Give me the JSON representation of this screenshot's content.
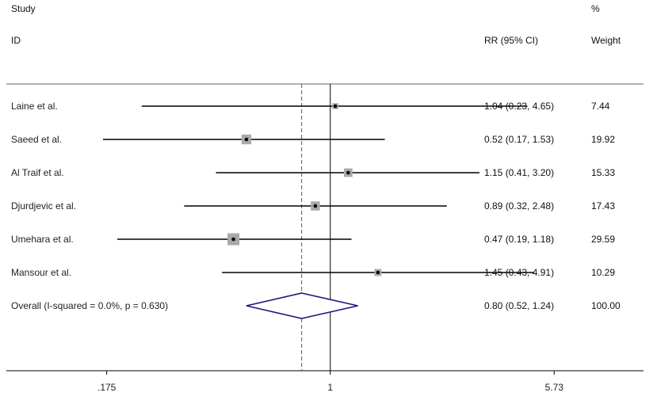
{
  "headers": {
    "study_line1": "Study",
    "study_line2": "ID",
    "rr": "RR (95% CI)",
    "weight_line1": "%",
    "weight_line2": "Weight"
  },
  "chart_data": {
    "type": "forest",
    "x_scale": "log",
    "xlim": [
      0.08,
      11.5
    ],
    "x_ticks": [
      0.175,
      1,
      5.73
    ],
    "x_tick_labels": [
      ".175",
      "1",
      "5.73"
    ],
    "null_line": 1,
    "overall_line": 0.8,
    "studies": [
      {
        "name": "Laine et al.",
        "rr": 1.04,
        "lo": 0.23,
        "hi": 4.65,
        "ci_text": "1.04 (0.23, 4.65)",
        "weight": 7.44,
        "weight_text": "7.44"
      },
      {
        "name": "Saeed et al.",
        "rr": 0.52,
        "lo": 0.17,
        "hi": 1.53,
        "ci_text": "0.52 (0.17, 1.53)",
        "weight": 19.92,
        "weight_text": "19.92"
      },
      {
        "name": "Al Traif et al.",
        "rr": 1.15,
        "lo": 0.41,
        "hi": 3.2,
        "ci_text": "1.15 (0.41, 3.20)",
        "weight": 15.33,
        "weight_text": "15.33"
      },
      {
        "name": "Djurdjevic et al.",
        "rr": 0.89,
        "lo": 0.32,
        "hi": 2.48,
        "ci_text": "0.89 (0.32, 2.48)",
        "weight": 17.43,
        "weight_text": "17.43"
      },
      {
        "name": "Umehara et al.",
        "rr": 0.47,
        "lo": 0.19,
        "hi": 1.18,
        "ci_text": "0.47 (0.19, 1.18)",
        "weight": 29.59,
        "weight_text": "29.59"
      },
      {
        "name": "Mansour et al.",
        "rr": 1.45,
        "lo": 0.43,
        "hi": 4.91,
        "ci_text": "1.45 (0.43, 4.91)",
        "weight": 10.29,
        "weight_text": "10.29"
      }
    ],
    "overall": {
      "name": "Overall  (I-squared = 0.0%, p = 0.630)",
      "rr": 0.8,
      "lo": 0.52,
      "hi": 1.24,
      "ci_text": "0.80 (0.52, 1.24)",
      "weight_text": "100.00"
    },
    "colors": {
      "ci_line": "#000000",
      "box": "#a9a9a9",
      "point": "#000000",
      "diamond": "#1a1a80",
      "overall_line": "#9b3b4a",
      "axis": "#000000"
    }
  }
}
